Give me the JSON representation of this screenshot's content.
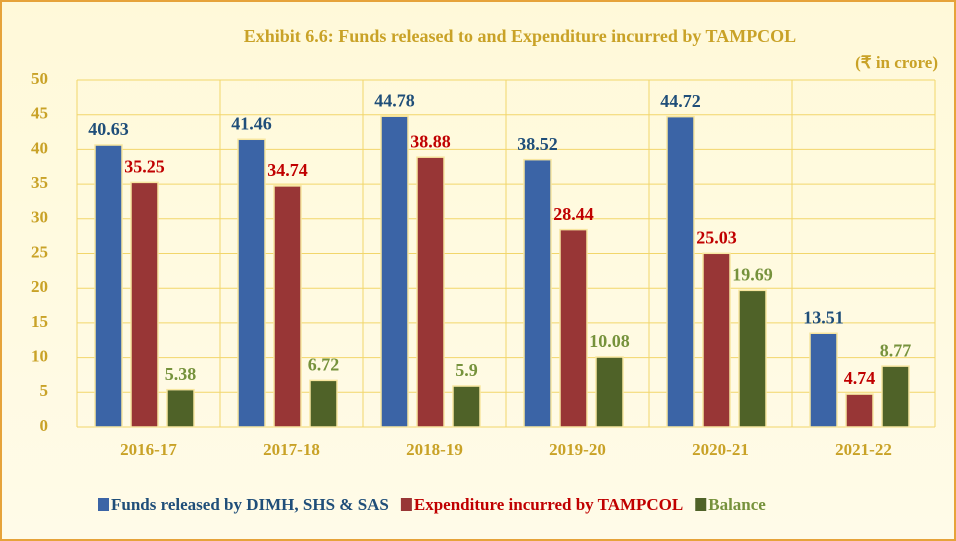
{
  "chart_data": {
    "type": "bar",
    "title": "Exhibit 6.6: Funds released to and Expenditure incurred by TAMPCOL",
    "subtitle": "(₹ in crore)",
    "categories": [
      "2016-17",
      "2017-18",
      "2018-19",
      "2019-20",
      "2020-21",
      "2021-22"
    ],
    "series": [
      {
        "name": "Funds released by DIMH, SHS & SAS",
        "color": "#3b64a6",
        "label_color": "#1f4e79",
        "values": [
          40.63,
          41.46,
          44.78,
          38.52,
          44.72,
          13.51
        ]
      },
      {
        "name": "Expenditure incurred by TAMPCOL",
        "color": "#983636",
        "label_color": "#c00000",
        "values": [
          35.25,
          34.74,
          38.88,
          28.44,
          25.03,
          4.74
        ]
      },
      {
        "name": "Balance",
        "color": "#4f6228",
        "label_color": "#76923c",
        "values": [
          5.38,
          6.72,
          5.9,
          10.08,
          19.69,
          8.77
        ]
      }
    ],
    "ylim": [
      0,
      50
    ],
    "yticks": [
      0,
      5,
      10,
      15,
      20,
      25,
      30,
      35,
      40,
      45,
      50
    ],
    "grid": true,
    "legend": "bottom"
  }
}
